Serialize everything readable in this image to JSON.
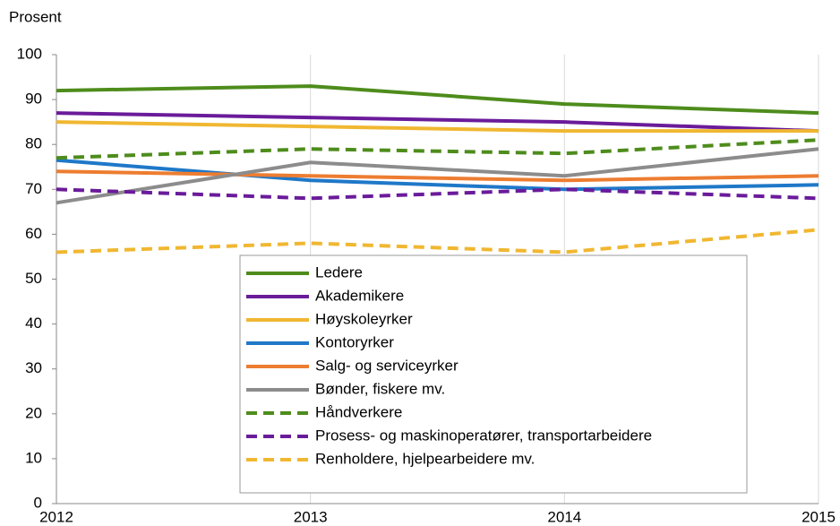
{
  "chart_data": {
    "type": "line",
    "ylabel": "Prosent",
    "x": [
      2012,
      2013,
      2014,
      2015
    ],
    "xlim": [
      2012,
      2015
    ],
    "xticks": [
      2012,
      2013,
      2014,
      2015
    ],
    "ylim": [
      0,
      100
    ],
    "yticks": [
      0,
      10,
      20,
      30,
      40,
      50,
      60,
      70,
      80,
      90,
      100
    ],
    "grid": "x",
    "series": [
      {
        "name": "Ledere",
        "color": "#4e8c1c",
        "dashed": false,
        "values": [
          92,
          93,
          89,
          87
        ]
      },
      {
        "name": "Akademikere",
        "color": "#6a1b9a",
        "dashed": false,
        "values": [
          87,
          86,
          85,
          83
        ]
      },
      {
        "name": "Høyskoleyrker",
        "color": "#f0b731",
        "dashed": false,
        "values": [
          85,
          84,
          83,
          83
        ]
      },
      {
        "name": "Kontoryrker",
        "color": "#1f78c8",
        "dashed": false,
        "values": [
          76.5,
          72,
          70,
          71
        ]
      },
      {
        "name": "Salg- og serviceyrker",
        "color": "#ed7d31",
        "dashed": false,
        "values": [
          74,
          73,
          72,
          73
        ]
      },
      {
        "name": "Bønder, fiskere mv.",
        "color": "#8c8c8c",
        "dashed": false,
        "values": [
          67,
          76,
          73,
          79
        ]
      },
      {
        "name": "Håndverkere",
        "color": "#4e8c1c",
        "dashed": true,
        "values": [
          77,
          79,
          78,
          81
        ]
      },
      {
        "name": "Prosess- og maskinoperatører, transportarbeidere",
        "color": "#6a1b9a",
        "dashed": true,
        "values": [
          70,
          68,
          70,
          68
        ]
      },
      {
        "name": "Renholdere, hjelpearbeidere mv.",
        "color": "#f0b731",
        "dashed": true,
        "values": [
          56,
          58,
          56,
          61
        ]
      }
    ]
  }
}
